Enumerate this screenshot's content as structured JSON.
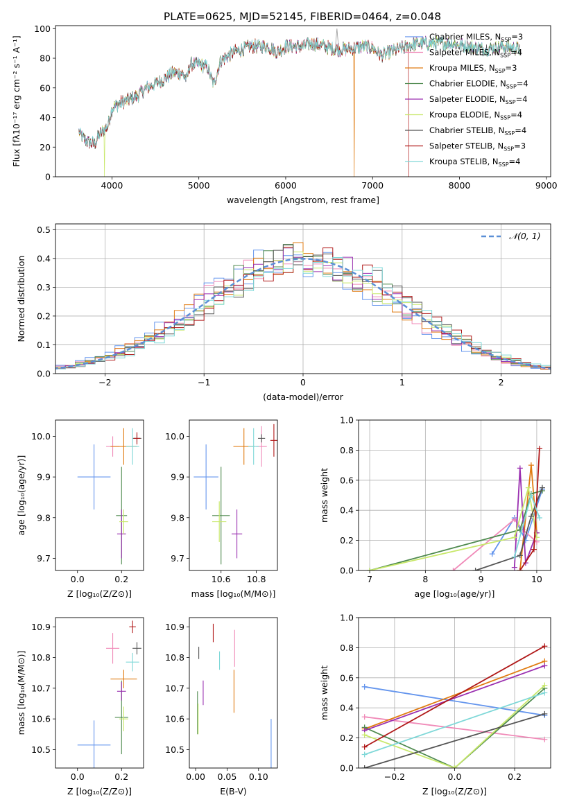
{
  "figure_title": "PLATE=0625, MJD=52145, FIBERID=0464, z=0.048",
  "model_colors": [
    "#6495ed",
    "#f08ab8",
    "#e07b10",
    "#4f8a4f",
    "#9a2fb0",
    "#c8e86a",
    "#555555",
    "#b01818",
    "#7fd8d8"
  ],
  "chart_data": [
    {
      "id": "spectrum",
      "type": "line",
      "xlabel": "wavelength [Angstrom, rest frame]",
      "ylabel": "Flux [fλ10⁻¹⁷ erg cm⁻² s⁻¹ A⁻¹]",
      "xlim": [
        3350,
        9050
      ],
      "ylim": [
        0,
        102
      ],
      "xticks": [
        "4000",
        "5000",
        "6000",
        "7000",
        "8000",
        "9000"
      ],
      "yticks": [
        "0",
        "20",
        "40",
        "60",
        "80",
        "100"
      ],
      "legend_position": "top-right",
      "legend": [
        "Chabrier MILES, N_SSP=3",
        "Salpeter MILES, N_SSP=4",
        "Kroupa MILES, N_SSP=3",
        "Chabrier ELODIE, N_SSP=4",
        "Salpeter ELODIE, N_SSP=4",
        "Kroupa ELODIE, N_SSP=4",
        "Chabrier STELIB, N_SSP=4",
        "Salpeter STELIB, N_SSP=3",
        "Kroupa STELIB, N_SSP=4"
      ],
      "continuum": [
        [
          3620,
          30
        ],
        [
          3700,
          24
        ],
        [
          3800,
          22
        ],
        [
          3850,
          28
        ],
        [
          3950,
          34
        ],
        [
          4000,
          46
        ],
        [
          4100,
          50
        ],
        [
          4200,
          52
        ],
        [
          4300,
          55
        ],
        [
          4400,
          60
        ],
        [
          4500,
          63
        ],
        [
          4600,
          66
        ],
        [
          4700,
          70
        ],
        [
          4800,
          70
        ],
        [
          4860,
          66
        ],
        [
          4900,
          76
        ],
        [
          5000,
          76
        ],
        [
          5100,
          74
        ],
        [
          5170,
          62
        ],
        [
          5250,
          78
        ],
        [
          5400,
          84
        ],
        [
          5500,
          86
        ],
        [
          5600,
          88
        ],
        [
          5800,
          88
        ],
        [
          5900,
          84
        ],
        [
          6000,
          88
        ],
        [
          6200,
          88
        ],
        [
          6300,
          90
        ],
        [
          6450,
          88
        ],
        [
          6563,
          86
        ],
        [
          6700,
          86
        ],
        [
          6900,
          88
        ],
        [
          7000,
          87
        ],
        [
          7100,
          82
        ],
        [
          7300,
          86
        ],
        [
          7500,
          90
        ],
        [
          7700,
          90
        ],
        [
          7900,
          90
        ],
        [
          8100,
          88
        ],
        [
          8300,
          86
        ],
        [
          8500,
          88
        ],
        [
          8700,
          86
        ]
      ],
      "dropouts": [
        {
          "series": 5,
          "x": 3915
        },
        {
          "series": 2,
          "x": 6790
        },
        {
          "series": 7,
          "x": 7420
        }
      ],
      "spike": [
        6590,
        100
      ]
    },
    {
      "id": "residuals",
      "type": "histogram",
      "xlabel": "(data-model)/error",
      "ylabel": "Normed distribution",
      "xlim": [
        -2.5,
        2.5
      ],
      "ylim": [
        0,
        0.52
      ],
      "xticks": [
        "−2",
        "−1",
        "0",
        "1",
        "2"
      ],
      "yticks": [
        "0.0",
        "0.1",
        "0.2",
        "0.3",
        "0.4",
        "0.5"
      ],
      "grid": true,
      "legend_position": "top-right",
      "legend": [
        "𝒩(0, 1)"
      ],
      "bin_width": 0.1,
      "gaussian": {
        "mean": 0,
        "sigma": 1
      }
    },
    {
      "id": "age-vs-Z",
      "type": "errorbar",
      "xlabel": "Z [log₁₀(Z/Z⊙)]",
      "ylabel": "age  [log₁₀(age/yr)]",
      "xlim": [
        -0.1,
        0.3
      ],
      "ylim": [
        9.67,
        10.04
      ],
      "xticks": [
        "0.0",
        "0.2"
      ],
      "yticks": [
        "9.7",
        "9.8",
        "9.9",
        "10.0"
      ],
      "points": [
        {
          "series": 0,
          "x": 0.075,
          "y": 9.9,
          "xerr": 0.075,
          "yerr": 0.08
        },
        {
          "series": 1,
          "x": 0.16,
          "y": 9.975,
          "xerr": 0.03,
          "yerr": 0.025
        },
        {
          "series": 2,
          "x": 0.21,
          "y": 9.975,
          "xerr": 0.06,
          "yerr": 0.045
        },
        {
          "series": 3,
          "x": 0.2,
          "y": 9.805,
          "xerr": 0.025,
          "yerr": 0.12
        },
        {
          "series": 4,
          "x": 0.2,
          "y": 9.76,
          "xerr": 0.02,
          "yerr": 0.06
        },
        {
          "series": 5,
          "x": 0.21,
          "y": 9.79,
          "xerr": 0.02,
          "yerr": 0.03
        },
        {
          "series": 6,
          "x": 0.27,
          "y": 9.995,
          "xerr": 0.02,
          "yerr": 0.01
        },
        {
          "series": 7,
          "x": 0.27,
          "y": 9.995,
          "xerr": 0.015,
          "yerr": 0.015
        },
        {
          "series": 8,
          "x": 0.25,
          "y": 9.975,
          "xerr": 0.03,
          "yerr": 0.045
        }
      ]
    },
    {
      "id": "age-vs-mass",
      "type": "errorbar",
      "xlabel": "mass [log₁₀(M/M⊙)]",
      "ylabel": "",
      "xlim": [
        10.42,
        10.92
      ],
      "ylim": [
        9.67,
        10.04
      ],
      "xticks": [
        "10.6",
        "10.8"
      ],
      "yticks": [
        "9.7",
        "9.8",
        "9.9",
        "10.0"
      ],
      "points": [
        {
          "series": 0,
          "x": 10.515,
          "y": 9.9,
          "xerr": 0.07,
          "yerr": 0.08
        },
        {
          "series": 1,
          "x": 10.83,
          "y": 9.975,
          "xerr": 0.03,
          "yerr": 0.05
        },
        {
          "series": 2,
          "x": 10.73,
          "y": 9.975,
          "xerr": 0.06,
          "yerr": 0.045
        },
        {
          "series": 3,
          "x": 10.6,
          "y": 9.805,
          "xerr": 0.05,
          "yerr": 0.12
        },
        {
          "series": 4,
          "x": 10.69,
          "y": 9.76,
          "xerr": 0.03,
          "yerr": 0.06
        },
        {
          "series": 5,
          "x": 10.59,
          "y": 9.79,
          "xerr": 0.04,
          "yerr": 0.05
        },
        {
          "series": 6,
          "x": 10.83,
          "y": 9.995,
          "xerr": 0.02,
          "yerr": 0.01
        },
        {
          "series": 7,
          "x": 10.9,
          "y": 9.99,
          "xerr": 0.02,
          "yerr": 0.04
        },
        {
          "series": 8,
          "x": 10.785,
          "y": 9.975,
          "xerr": 0.03,
          "yerr": 0.045
        }
      ]
    },
    {
      "id": "mass-weight-vs-age",
      "type": "line",
      "xlabel": "age  [log₁₀(age/yr)]",
      "ylabel": "mass weight",
      "xlim": [
        6.8,
        10.25
      ],
      "ylim": [
        0,
        1
      ],
      "xticks": [
        "7",
        "8",
        "9",
        "10"
      ],
      "yticks": [
        "0.0",
        "0.2",
        "0.4",
        "0.6",
        "0.8",
        "1.0"
      ],
      "grid": true,
      "series": [
        {
          "index": 0,
          "points": [
            [
              9.2,
              0.11
            ],
            [
              9.6,
              0.35
            ],
            [
              9.8,
              0.2
            ],
            [
              10.1,
              0.54
            ]
          ]
        },
        {
          "index": 1,
          "points": [
            [
              8.5,
              0.0
            ],
            [
              9.6,
              0.34
            ],
            [
              9.75,
              0.27
            ],
            [
              10.0,
              0.19
            ]
          ]
        },
        {
          "index": 2,
          "points": [
            [
              9.7,
              0.0
            ],
            [
              9.9,
              0.7
            ],
            [
              10.0,
              0.25
            ]
          ]
        },
        {
          "index": 3,
          "points": [
            [
              7.0,
              0.0
            ],
            [
              9.7,
              0.27
            ],
            [
              9.9,
              0.51
            ],
            [
              10.1,
              0.53
            ]
          ]
        },
        {
          "index": 4,
          "points": [
            [
              9.6,
              0.02
            ],
            [
              9.7,
              0.68
            ],
            [
              9.8,
              0.05
            ],
            [
              10.0,
              0.25
            ]
          ]
        },
        {
          "index": 5,
          "points": [
            [
              7.0,
              0.0
            ],
            [
              9.6,
              0.22
            ],
            [
              9.85,
              0.55
            ],
            [
              10.0,
              0.22
            ]
          ]
        },
        {
          "index": 6,
          "points": [
            [
              8.9,
              0.0
            ],
            [
              9.7,
              0.1
            ],
            [
              9.9,
              0.36
            ],
            [
              10.1,
              0.55
            ]
          ]
        },
        {
          "index": 7,
          "points": [
            [
              9.7,
              0.0
            ],
            [
              9.95,
              0.14
            ],
            [
              10.05,
              0.81
            ]
          ]
        },
        {
          "index": 8,
          "points": [
            [
              9.6,
              0.09
            ],
            [
              9.9,
              0.5
            ],
            [
              10.05,
              0.35
            ]
          ]
        }
      ]
    },
    {
      "id": "mass-vs-Z",
      "type": "errorbar",
      "xlabel": "Z [log₁₀(Z/Z⊙)]",
      "ylabel": "mass [log₁₀(M/M⊙)]",
      "xlim": [
        -0.1,
        0.3
      ],
      "ylim": [
        10.44,
        10.93
      ],
      "xticks": [
        "0.0",
        "0.2"
      ],
      "yticks": [
        "10.5",
        "10.6",
        "10.7",
        "10.8",
        "10.9"
      ],
      "points": [
        {
          "series": 0,
          "x": 0.075,
          "y": 10.515,
          "xerr": 0.075,
          "yerr": 0.08
        },
        {
          "series": 1,
          "x": 0.16,
          "y": 10.83,
          "xerr": 0.03,
          "yerr": 0.05
        },
        {
          "series": 2,
          "x": 0.21,
          "y": 10.73,
          "xerr": 0.06,
          "yerr": 0.03
        },
        {
          "series": 3,
          "x": 0.2,
          "y": 10.605,
          "xerr": 0.03,
          "yerr": 0.12
        },
        {
          "series": 4,
          "x": 0.2,
          "y": 10.69,
          "xerr": 0.02,
          "yerr": 0.03
        },
        {
          "series": 5,
          "x": 0.21,
          "y": 10.6,
          "xerr": 0.02,
          "yerr": 0.04
        },
        {
          "series": 6,
          "x": 0.27,
          "y": 10.83,
          "xerr": 0.02,
          "yerr": 0.02
        },
        {
          "series": 7,
          "x": 0.25,
          "y": 10.9,
          "xerr": 0.015,
          "yerr": 0.02
        },
        {
          "series": 8,
          "x": 0.25,
          "y": 10.785,
          "xerr": 0.03,
          "yerr": 0.03
        }
      ]
    },
    {
      "id": "mass-vs-EBV",
      "type": "errorbar",
      "xlabel": "E(B-V)",
      "ylabel": "",
      "xlim": [
        -0.01,
        0.13
      ],
      "ylim": [
        10.44,
        10.93
      ],
      "xticks": [
        "0.00",
        "0.05",
        "0.10"
      ],
      "yticks": [
        "10.5",
        "10.6",
        "10.7",
        "10.8",
        "10.9"
      ],
      "points": [
        {
          "series": 0,
          "x": 0.12,
          "y": 10.5,
          "xerr": 0,
          "yerr": 0.1
        },
        {
          "series": 1,
          "x": 0.062,
          "y": 10.83,
          "xerr": 0,
          "yerr": 0.06
        },
        {
          "series": 2,
          "x": 0.061,
          "y": 10.69,
          "xerr": 0,
          "yerr": 0.07
        },
        {
          "series": 3,
          "x": 0.003,
          "y": 10.62,
          "xerr": 0,
          "yerr": 0.07
        },
        {
          "series": 4,
          "x": 0.012,
          "y": 10.685,
          "xerr": 0,
          "yerr": 0.04
        },
        {
          "series": 5,
          "x": 0.004,
          "y": 10.6,
          "xerr": 0,
          "yerr": 0.05
        },
        {
          "series": 6,
          "x": 0.005,
          "y": 10.815,
          "xerr": 0,
          "yerr": 0.02
        },
        {
          "series": 7,
          "x": 0.028,
          "y": 10.88,
          "xerr": 0,
          "yerr": 0.03
        },
        {
          "series": 8,
          "x": 0.038,
          "y": 10.79,
          "xerr": 0,
          "yerr": 0.03
        }
      ]
    },
    {
      "id": "mass-weight-vs-Z",
      "type": "line",
      "xlabel": "Z [log₁₀(Z/Z⊙)]",
      "ylabel": "mass weight",
      "xlim": [
        -0.32,
        0.32
      ],
      "ylim": [
        0,
        1
      ],
      "xticks": [
        "−0.2",
        "0.0",
        "0.2"
      ],
      "yticks": [
        "0.0",
        "0.2",
        "0.4",
        "0.6",
        "0.8",
        "1.0"
      ],
      "grid": true,
      "series": [
        {
          "index": 0,
          "points": [
            [
              -0.3,
              0.54
            ],
            [
              0.3,
              0.35
            ]
          ]
        },
        {
          "index": 1,
          "points": [
            [
              -0.3,
              0.34
            ],
            [
              0.3,
              0.19
            ]
          ]
        },
        {
          "index": 2,
          "points": [
            [
              -0.3,
              0.26
            ],
            [
              0.3,
              0.71
            ]
          ]
        },
        {
          "index": 3,
          "points": [
            [
              -0.3,
              0.27
            ],
            [
              0.0,
              0.0
            ],
            [
              0.3,
              0.53
            ]
          ]
        },
        {
          "index": 4,
          "points": [
            [
              -0.3,
              0.25
            ],
            [
              0.3,
              0.68
            ]
          ]
        },
        {
          "index": 5,
          "points": [
            [
              -0.3,
              0.22
            ],
            [
              0.0,
              0.0
            ],
            [
              0.3,
              0.55
            ]
          ]
        },
        {
          "index": 6,
          "points": [
            [
              -0.3,
              0.0
            ],
            [
              0.3,
              0.36
            ]
          ]
        },
        {
          "index": 7,
          "points": [
            [
              -0.3,
              0.14
            ],
            [
              0.3,
              0.81
            ]
          ]
        },
        {
          "index": 8,
          "points": [
            [
              -0.3,
              0.09
            ],
            [
              0.3,
              0.5
            ]
          ]
        }
      ]
    }
  ]
}
